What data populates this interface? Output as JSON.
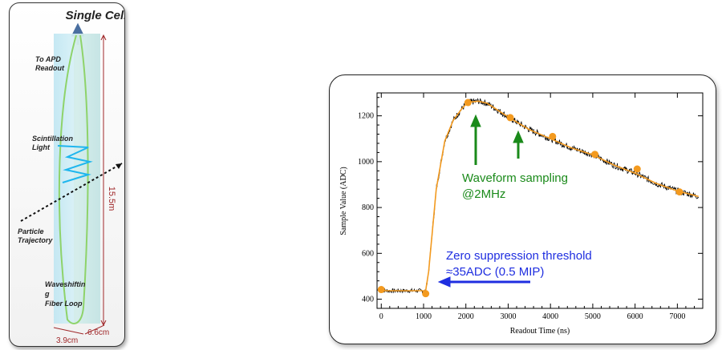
{
  "cell_diagram": {
    "title": "Single Cell",
    "labels": {
      "apd_line1": "To APD",
      "apd_line2": "Readout",
      "scint_line1": "Scintillation",
      "scint_line2": "Light",
      "particle_line1": "Particle",
      "particle_line2": "Trajectory",
      "fiber_line1": "Waveshiftin",
      "fiber_line2": "g",
      "fiber_line3": "Fiber Loop"
    },
    "dimensions": {
      "length": "15.5m",
      "width": "3.9cm",
      "depth": "6.6cm"
    }
  },
  "chart_data": {
    "type": "line",
    "xlabel": "Readout Time (ns)",
    "ylabel": "Sample Value (ADC)",
    "xlim": [
      -100,
      7600
    ],
    "ylim": [
      360,
      1300
    ],
    "xticks": [
      0,
      1000,
      2000,
      3000,
      4000,
      5000,
      6000,
      7000
    ],
    "yticks": [
      400,
      600,
      800,
      1000,
      1200
    ],
    "series": [
      {
        "style": "fit-curve",
        "x": [
          0,
          1050,
          1120,
          1300,
          1500,
          1700,
          1900,
          2000,
          2100,
          2300,
          2500,
          3000,
          3500,
          4000,
          4500,
          5000,
          5500,
          6000,
          6500,
          7000,
          7300,
          7500
        ],
        "y": [
          437,
          437,
          520,
          880,
          1090,
          1180,
          1230,
          1250,
          1260,
          1264,
          1255,
          1195,
          1140,
          1100,
          1060,
          1030,
          985,
          950,
          905,
          872,
          858,
          848
        ]
      },
      {
        "style": "samples",
        "x": [
          0,
          1050,
          2050,
          3050,
          4050,
          5050,
          6050,
          7050
        ],
        "y": [
          442,
          424,
          1258,
          1192,
          1110,
          1032,
          968,
          868
        ]
      }
    ],
    "annotations": {
      "sampling_line1": "Waveform sampling",
      "sampling_line2": "@2MHz",
      "threshold_line1": "Zero suppression threshold",
      "threshold_line2": "≈35ADC (0.5 MIP)"
    },
    "colors": {
      "noisy_trace": "#000000",
      "fit": "#f39a1f",
      "samples": "#f39a1f",
      "sampling_annotation": "#1a8a1a",
      "threshold_annotation": "#1f2ee0"
    }
  }
}
